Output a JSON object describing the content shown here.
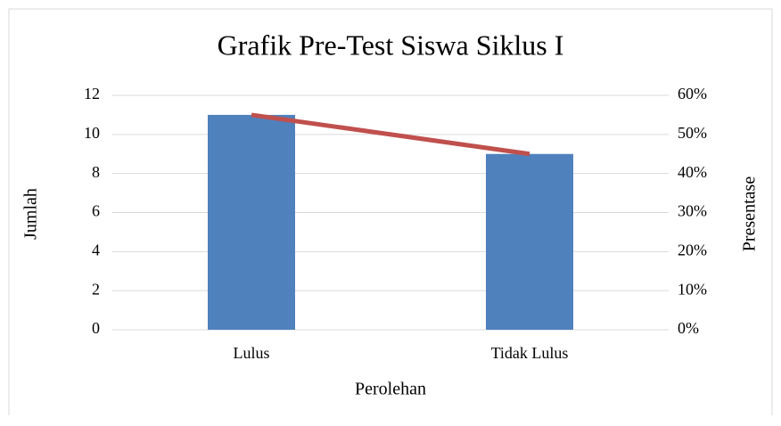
{
  "chart_data": {
    "type": "bar",
    "title": "Grafik Pre-Test Siswa Siklus I",
    "x_label": "Perolehan",
    "y_label": "Jumlah",
    "y2_label": "Presentase",
    "categories": [
      "Lulus",
      "Tidak Lulus"
    ],
    "series": [
      {
        "name": "Jumlah",
        "type": "bar",
        "color": "#4f81bd",
        "values": [
          11,
          9
        ]
      },
      {
        "name": "Presentase",
        "type": "line",
        "axis": "y2",
        "color": "#c0504d",
        "values": [
          55,
          45
        ]
      }
    ],
    "ylim": [
      0,
      12
    ],
    "yticks": [
      0,
      2,
      4,
      6,
      8,
      10,
      12
    ],
    "y2lim": [
      0,
      60
    ],
    "y2ticks": [
      {
        "value": 0,
        "label": "0%"
      },
      {
        "value": 10,
        "label": "10%"
      },
      {
        "value": 20,
        "label": "20%"
      },
      {
        "value": 30,
        "label": "30%"
      },
      {
        "value": 40,
        "label": "40%"
      },
      {
        "value": 50,
        "label": "50%"
      },
      {
        "value": 60,
        "label": "60%"
      }
    ],
    "grid": true
  }
}
